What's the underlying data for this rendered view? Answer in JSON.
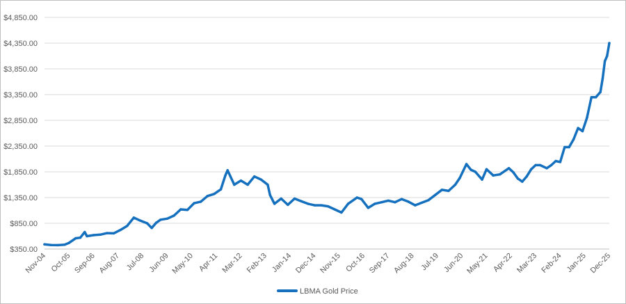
{
  "chart_data": {
    "type": "line",
    "title": "",
    "xlabel": "",
    "ylabel": "",
    "legend_position": "bottom",
    "grid": true,
    "line_color": "#1570BE",
    "ylim": [
      350,
      4850
    ],
    "y_ticks": [
      "$350.00",
      "$850.00",
      "$1,350.00",
      "$1,850.00",
      "$2,350.00",
      "$2,850.00",
      "$3,350.00",
      "$3,850.00",
      "$4,350.00",
      "$4,850.00"
    ],
    "y_tick_values": [
      350,
      850,
      1350,
      1850,
      2350,
      2850,
      3350,
      3850,
      4350,
      4850
    ],
    "x_ticks": [
      "Nov-04",
      "Oct-05",
      "Sep-06",
      "Aug-07",
      "Jul-08",
      "Jun-09",
      "May-10",
      "Apr-11",
      "Mar-12",
      "Feb-13",
      "Jan-14",
      "Dec-14",
      "Nov-15",
      "Oct-16",
      "Sep-17",
      "Aug-18",
      "Jul-19",
      "Jun-20",
      "May-21",
      "Apr-22",
      "Mar-23",
      "Feb-24",
      "Jan-25",
      "Dec-25"
    ],
    "series": [
      {
        "name": "LBMA Gold Price",
        "x": [
          "2004-11",
          "2005-02",
          "2005-05",
          "2005-08",
          "2005-10",
          "2006-01",
          "2006-03",
          "2006-05",
          "2006-06",
          "2006-09",
          "2006-12",
          "2007-03",
          "2007-06",
          "2007-09",
          "2007-12",
          "2008-03",
          "2008-06",
          "2008-09",
          "2008-11",
          "2009-01",
          "2009-03",
          "2009-06",
          "2009-09",
          "2009-12",
          "2010-03",
          "2010-06",
          "2010-09",
          "2010-12",
          "2011-03",
          "2011-06",
          "2011-08",
          "2011-09",
          "2011-12",
          "2012-03",
          "2012-06",
          "2012-09",
          "2012-12",
          "2013-03",
          "2013-04",
          "2013-06",
          "2013-09",
          "2013-12",
          "2014-03",
          "2014-06",
          "2014-09",
          "2014-12",
          "2015-03",
          "2015-06",
          "2015-09",
          "2015-12",
          "2016-03",
          "2016-07",
          "2016-09",
          "2016-12",
          "2017-03",
          "2017-06",
          "2017-09",
          "2017-12",
          "2018-03",
          "2018-06",
          "2018-09",
          "2018-12",
          "2019-03",
          "2019-06",
          "2019-09",
          "2019-12",
          "2020-03",
          "2020-05",
          "2020-08",
          "2020-10",
          "2020-12",
          "2021-03",
          "2021-05",
          "2021-08",
          "2021-11",
          "2022-03",
          "2022-05",
          "2022-07",
          "2022-09",
          "2022-11",
          "2023-01",
          "2023-03",
          "2023-05",
          "2023-08",
          "2023-10",
          "2023-12",
          "2024-02",
          "2024-04",
          "2024-06",
          "2024-08",
          "2024-10",
          "2024-12",
          "2025-02",
          "2025-04",
          "2025-06",
          "2025-08",
          "2025-09",
          "2025-10",
          "2025-11",
          "2025-12"
        ],
        "values": [
          440,
          428,
          425,
          435,
          470,
          560,
          570,
          680,
          600,
          620,
          630,
          660,
          655,
          720,
          800,
          960,
          900,
          850,
          760,
          860,
          920,
          940,
          1000,
          1120,
          1110,
          1240,
          1270,
          1380,
          1420,
          1510,
          1780,
          1880,
          1600,
          1680,
          1600,
          1760,
          1700,
          1600,
          1400,
          1230,
          1330,
          1210,
          1330,
          1280,
          1230,
          1200,
          1200,
          1180,
          1120,
          1060,
          1230,
          1350,
          1320,
          1150,
          1230,
          1260,
          1290,
          1260,
          1320,
          1270,
          1200,
          1250,
          1300,
          1400,
          1500,
          1480,
          1600,
          1730,
          2000,
          1890,
          1850,
          1700,
          1900,
          1780,
          1800,
          1920,
          1840,
          1720,
          1660,
          1760,
          1900,
          1980,
          1980,
          1920,
          1980,
          2060,
          2040,
          2330,
          2330,
          2480,
          2700,
          2640,
          2900,
          3300,
          3300,
          3400,
          3660,
          4000,
          4100,
          4350
        ]
      }
    ]
  }
}
